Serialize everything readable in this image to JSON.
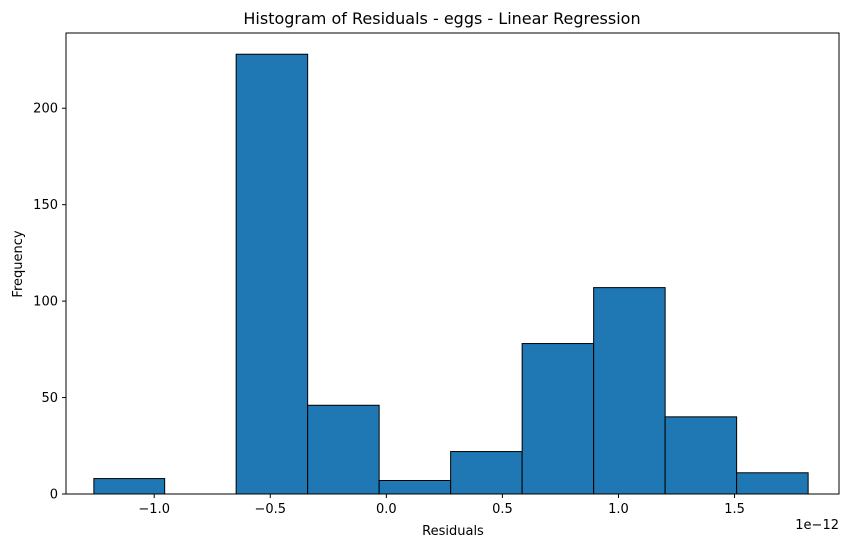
{
  "chart_data": {
    "type": "bar",
    "title": "Histogram of Residuals - eggs  - Linear Regression",
    "xlabel": "Residuals",
    "ylabel": "Frequency",
    "x_offset_label": "1e−12",
    "x_scale_exponent": -12,
    "xlim": [
      -1.38,
      1.95
    ],
    "ylim": [
      0,
      239
    ],
    "grid": false,
    "legend": "none",
    "bar_color": "#1f77b4",
    "edge_color": "#000000",
    "bins": [
      {
        "x0": -1.26,
        "x1": -0.955,
        "count": 8
      },
      {
        "x0": -0.955,
        "x1": -0.647,
        "count": 0
      },
      {
        "x0": -0.647,
        "x1": -0.339,
        "count": 228
      },
      {
        "x0": -0.339,
        "x1": -0.031,
        "count": 46
      },
      {
        "x0": -0.031,
        "x1": 0.277,
        "count": 7
      },
      {
        "x0": 0.277,
        "x1": 0.585,
        "count": 22
      },
      {
        "x0": 0.585,
        "x1": 0.893,
        "count": 78
      },
      {
        "x0": 0.893,
        "x1": 1.201,
        "count": 107
      },
      {
        "x0": 1.201,
        "x1": 1.509,
        "count": 40
      },
      {
        "x0": 1.509,
        "x1": 1.817,
        "count": 11
      }
    ],
    "x_ticks": [
      {
        "value": -1.0,
        "label": "−1.0"
      },
      {
        "value": -0.5,
        "label": "−0.5"
      },
      {
        "value": 0.0,
        "label": "0.0"
      },
      {
        "value": 0.5,
        "label": "0.5"
      },
      {
        "value": 1.0,
        "label": "1.0"
      },
      {
        "value": 1.5,
        "label": "1.5"
      }
    ],
    "y_ticks": [
      {
        "value": 0,
        "label": "0"
      },
      {
        "value": 50,
        "label": "50"
      },
      {
        "value": 100,
        "label": "100"
      },
      {
        "value": 150,
        "label": "150"
      },
      {
        "value": 200,
        "label": "200"
      }
    ]
  }
}
